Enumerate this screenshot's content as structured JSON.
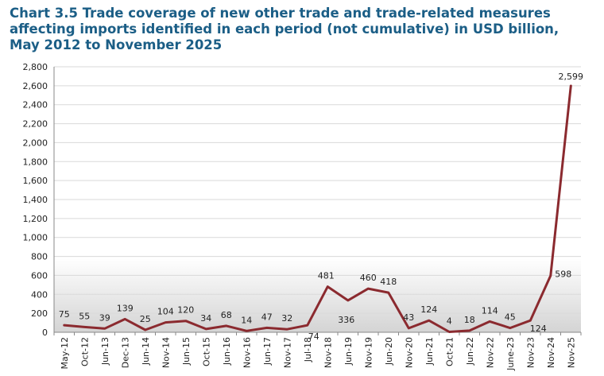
{
  "chart_data": {
    "type": "line",
    "title": "Chart 3.5 Trade coverage of new other trade and trade-related measures affecting imports identified in each period (not cumulative) in USD billion, May 2012 to November 2025",
    "xlabel": "",
    "ylabel": "",
    "ylim": [
      0,
      2800
    ],
    "y_ticks": [
      0,
      200,
      400,
      600,
      800,
      1000,
      1200,
      1400,
      1600,
      1800,
      2000,
      2200,
      2400,
      2600,
      2800
    ],
    "y_tick_labels": [
      "0",
      "200",
      "400",
      "600",
      "800",
      "1,000",
      "1,200",
      "1,400",
      "1,600",
      "1,800",
      "2,000",
      "2,200",
      "2,400",
      "2,600",
      "2,800"
    ],
    "categories": [
      "May-12",
      "Oct-12",
      "Jun-13",
      "Dec-13",
      "Jun-14",
      "Nov-14",
      "Jun-15",
      "Oct-15",
      "Jun-16",
      "Nov-16",
      "Jun-17",
      "Nov-17",
      "Jul-18",
      "Nov-18",
      "Jun-19",
      "Nov-19",
      "Jun-20",
      "Nov-20",
      "Jun-21",
      "Oct-21",
      "Jun-22",
      "Nov-22",
      "June-23",
      "Nov-23",
      "Nov-24",
      "Nov-25"
    ],
    "series": [
      {
        "name": "Trade coverage",
        "color": "#8b2a2f",
        "values": [
          75,
          55,
          39,
          139,
          25,
          104,
          120,
          34,
          68,
          14,
          47,
          32,
          74,
          481,
          336,
          460,
          418,
          43,
          124,
          4,
          18,
          114,
          45,
          124,
          598,
          2599
        ],
        "labels": [
          "75",
          "55",
          "39",
          "139",
          "25",
          "104",
          "120",
          "34",
          "68",
          "14",
          "47",
          "32",
          "74",
          "481",
          "336",
          "460",
          "418",
          "43",
          "124",
          "4",
          "18",
          "114",
          "45",
          "124",
          "598",
          "2,599"
        ]
      }
    ],
    "grid": true,
    "legend": "none"
  }
}
